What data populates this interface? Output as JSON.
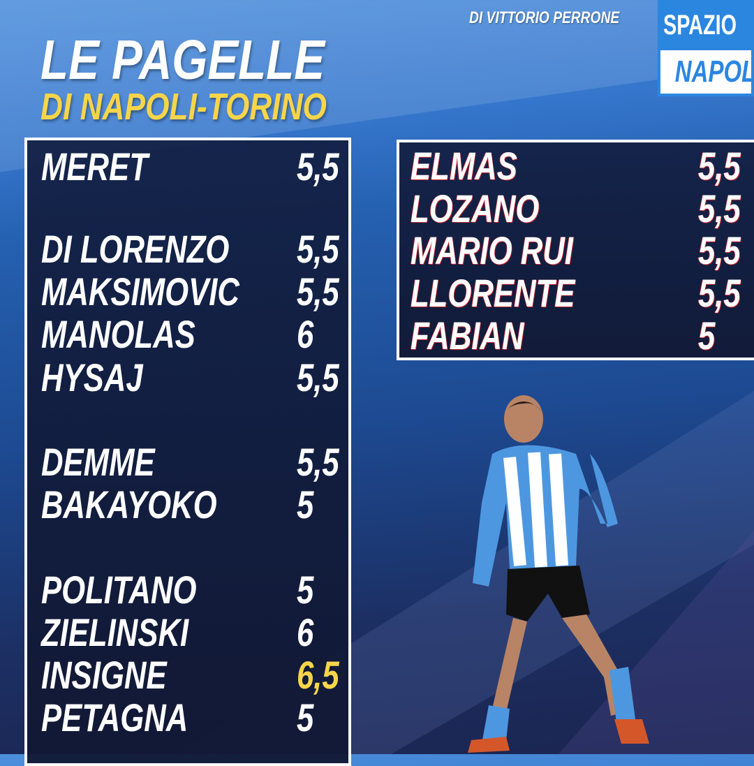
{
  "header": {
    "title": "LE PAGELLE",
    "subtitle": "DI NAPOLI-TORINO",
    "author": "DI VITTORIO PERRONE"
  },
  "logo": {
    "line1": "SPAZIO",
    "line2": "NAPOLI"
  },
  "left_ratings": [
    {
      "name": "MERET",
      "grade": "5,5"
    },
    {
      "name": "DI LORENZO",
      "grade": "5,5"
    },
    {
      "name": "MAKSIMOVIC",
      "grade": "5,5"
    },
    {
      "name": "MANOLAS",
      "grade": "6"
    },
    {
      "name": "HYSAJ",
      "grade": "5,5"
    },
    {
      "name": "DEMME",
      "grade": "5,5"
    },
    {
      "name": "BAKAYOKO",
      "grade": "5"
    },
    {
      "name": "POLITANO",
      "grade": "5"
    },
    {
      "name": "ZIELINSKI",
      "grade": "6"
    },
    {
      "name": "INSIGNE",
      "grade": "6,5",
      "highlight": true
    },
    {
      "name": "PETAGNA",
      "grade": "5"
    }
  ],
  "right_ratings": [
    {
      "name": "ELMAS",
      "grade": "5,5"
    },
    {
      "name": "LOZANO",
      "grade": "5,5"
    },
    {
      "name": "MARIO RUI",
      "grade": "5,5"
    },
    {
      "name": "LLORENTE",
      "grade": "5,5"
    },
    {
      "name": "FABIAN",
      "grade": "5"
    }
  ],
  "colors": {
    "highlight": "#f6d54a",
    "brand_blue": "#2b86e0"
  }
}
